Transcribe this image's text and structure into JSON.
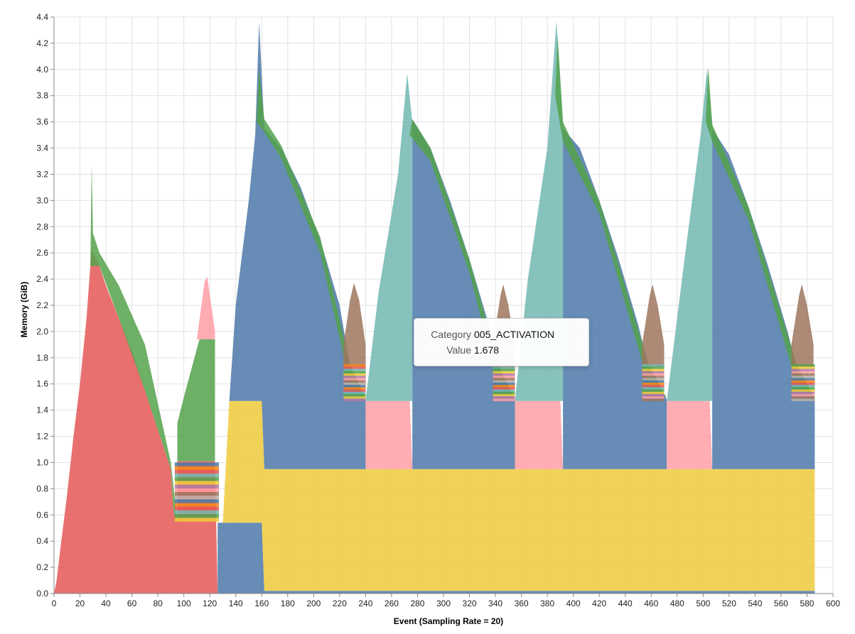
{
  "chart_data": {
    "type": "area",
    "stacked": true,
    "xlabel": "Event (Sampling Rate = 20)",
    "ylabel": "Memory (GiB)",
    "xlim": [
      0,
      600
    ],
    "ylim": [
      0,
      4.4
    ],
    "x_ticks": [
      0,
      20,
      40,
      60,
      80,
      100,
      120,
      140,
      160,
      180,
      200,
      220,
      240,
      260,
      280,
      300,
      320,
      340,
      360,
      380,
      400,
      420,
      440,
      460,
      480,
      500,
      520,
      540,
      560,
      580,
      600
    ],
    "y_ticks": [
      "0.0",
      "0.2",
      "0.4",
      "0.6",
      "0.8",
      "1.0",
      "1.2",
      "1.4",
      "1.6",
      "1.8",
      "2.0",
      "2.2",
      "2.4",
      "2.6",
      "2.8",
      "3.0",
      "3.2",
      "3.4",
      "3.6",
      "3.8",
      "4.0",
      "4.2",
      "4.4"
    ],
    "grid": true,
    "colors": {
      "red": "#e45756",
      "blue": "#4c78a8",
      "yellow": "#eeca3b",
      "teal": "#72b7b2",
      "pink": "#ff9da6",
      "green": "#54a24b",
      "brown": "#9d755d",
      "orange": "#f58518",
      "purple": "#b279a2",
      "gray": "#bab0ac"
    },
    "regions": [
      {
        "color": "red",
        "points": [
          [
            0,
            0
          ],
          [
            2,
            0.1
          ],
          [
            5,
            0.35
          ],
          [
            10,
            0.75
          ],
          [
            15,
            1.2
          ],
          [
            20,
            1.6
          ],
          [
            25,
            2.1
          ],
          [
            28,
            2.5
          ],
          [
            29,
            2.62
          ],
          [
            35,
            2.5
          ],
          [
            40,
            2.35
          ],
          [
            50,
            2.1
          ],
          [
            60,
            1.85
          ],
          [
            70,
            1.55
          ],
          [
            80,
            1.25
          ],
          [
            90,
            0.95
          ],
          [
            92,
            0.62
          ],
          [
            95,
            0.55
          ],
          [
            95,
            1.01
          ],
          [
            124,
            1.01
          ],
          [
            126,
            0
          ]
        ]
      },
      {
        "color": "green",
        "points": [
          [
            95,
            1.01
          ],
          [
            95,
            1.3
          ],
          [
            100,
            1.5
          ],
          [
            112,
            1.94
          ],
          [
            124,
            1.94
          ],
          [
            124,
            1.01
          ]
        ]
      },
      {
        "color": "pink",
        "points": [
          [
            110,
            1.94
          ],
          [
            116,
            2.38
          ],
          [
            118,
            2.42
          ],
          [
            124,
            2.0
          ],
          [
            124,
            1.94
          ]
        ]
      },
      {
        "color": "blue",
        "points": [
          [
            126,
            0
          ],
          [
            126,
            0.54
          ],
          [
            160,
            0.54
          ],
          [
            162,
            0.02
          ],
          [
            586,
            0.02
          ],
          [
            586,
            0
          ]
        ]
      },
      {
        "color": "yellow",
        "points": [
          [
            130,
            0.54
          ],
          [
            135,
            1.47
          ],
          [
            160,
            1.47
          ],
          [
            162,
            0.95
          ],
          [
            586,
            0.95
          ],
          [
            586,
            0.02
          ],
          [
            162,
            0.02
          ],
          [
            160,
            0.54
          ]
        ]
      },
      {
        "color": "blue",
        "points": [
          [
            135,
            1.47
          ],
          [
            140,
            2.2
          ],
          [
            150,
            3.0
          ],
          [
            155,
            3.5
          ],
          [
            158,
            4.36
          ],
          [
            162,
            3.55
          ],
          [
            175,
            3.4
          ],
          [
            190,
            3.1
          ],
          [
            205,
            2.7
          ],
          [
            220,
            2.2
          ],
          [
            228,
            1.73
          ],
          [
            240,
            1.48
          ],
          [
            240,
            0.95
          ],
          [
            162,
            0.95
          ],
          [
            160,
            1.47
          ]
        ]
      },
      {
        "color": "pink",
        "points": [
          [
            240,
            0.95
          ],
          [
            240,
            1.47
          ],
          [
            274,
            1.47
          ],
          [
            276,
            0.95
          ]
        ]
      },
      {
        "color": "teal",
        "points": [
          [
            240,
            1.47
          ],
          [
            250,
            2.3
          ],
          [
            265,
            3.2
          ],
          [
            272,
            3.97
          ],
          [
            276,
            3.6
          ],
          [
            276,
            1.47
          ]
        ]
      },
      {
        "color": "blue",
        "points": [
          [
            276,
            0.95
          ],
          [
            276,
            3.62
          ],
          [
            290,
            3.4
          ],
          [
            305,
            3.0
          ],
          [
            320,
            2.55
          ],
          [
            335,
            2.05
          ],
          [
            342,
            1.73
          ],
          [
            355,
            1.48
          ],
          [
            355,
            0.95
          ]
        ]
      },
      {
        "color": "pink",
        "points": [
          [
            355,
            0.95
          ],
          [
            355,
            1.47
          ],
          [
            390,
            1.47
          ],
          [
            392,
            0.95
          ]
        ]
      },
      {
        "color": "teal",
        "points": [
          [
            355,
            1.47
          ],
          [
            365,
            2.4
          ],
          [
            380,
            3.4
          ],
          [
            387,
            4.37
          ],
          [
            392,
            3.6
          ],
          [
            392,
            1.47
          ]
        ]
      },
      {
        "color": "blue",
        "points": [
          [
            392,
            0.95
          ],
          [
            392,
            3.55
          ],
          [
            405,
            3.4
          ],
          [
            420,
            3.0
          ],
          [
            435,
            2.55
          ],
          [
            450,
            2.05
          ],
          [
            458,
            1.73
          ],
          [
            472,
            1.48
          ],
          [
            472,
            0.95
          ]
        ]
      },
      {
        "color": "pink",
        "points": [
          [
            472,
            0.95
          ],
          [
            472,
            1.47
          ],
          [
            505,
            1.47
          ],
          [
            507,
            0.95
          ]
        ]
      },
      {
        "color": "teal",
        "points": [
          [
            472,
            1.47
          ],
          [
            485,
            2.5
          ],
          [
            498,
            3.5
          ],
          [
            503,
            4.0
          ],
          [
            507,
            3.6
          ],
          [
            507,
            1.47
          ]
        ]
      },
      {
        "color": "blue",
        "points": [
          [
            507,
            0.95
          ],
          [
            507,
            3.55
          ],
          [
            520,
            3.35
          ],
          [
            535,
            2.95
          ],
          [
            550,
            2.5
          ],
          [
            565,
            2.0
          ],
          [
            572,
            1.73
          ],
          [
            586,
            1.48
          ],
          [
            586,
            0.95
          ]
        ]
      },
      {
        "color": "green",
        "points": [
          [
            28,
            2.5
          ],
          [
            29,
            3.28
          ],
          [
            30,
            2.75
          ],
          [
            35,
            2.6
          ],
          [
            50,
            2.35
          ],
          [
            70,
            1.9
          ],
          [
            90,
            1.0
          ],
          [
            95,
            0.55
          ],
          [
            92,
            0.62
          ],
          [
            90,
            0.95
          ],
          [
            70,
            1.55
          ],
          [
            50,
            2.1
          ],
          [
            35,
            2.5
          ]
        ]
      },
      {
        "color": "green",
        "points": [
          [
            156,
            3.6
          ],
          [
            158,
            4.0
          ],
          [
            162,
            3.62
          ],
          [
            175,
            3.42
          ],
          [
            205,
            2.72
          ],
          [
            228,
            1.75
          ],
          [
            240,
            1.49
          ],
          [
            228,
            1.6
          ],
          [
            205,
            2.6
          ],
          [
            175,
            3.32
          ],
          [
            162,
            3.52
          ]
        ]
      },
      {
        "color": "green",
        "points": [
          [
            274,
            3.5
          ],
          [
            276,
            3.62
          ],
          [
            290,
            3.4
          ],
          [
            320,
            2.55
          ],
          [
            342,
            1.75
          ],
          [
            355,
            1.49
          ],
          [
            342,
            1.6
          ],
          [
            320,
            2.45
          ],
          [
            290,
            3.3
          ]
        ]
      },
      {
        "color": "green",
        "points": [
          [
            386,
            3.8
          ],
          [
            388,
            4.25
          ],
          [
            392,
            3.6
          ],
          [
            420,
            3.0
          ],
          [
            458,
            1.75
          ],
          [
            472,
            1.49
          ],
          [
            458,
            1.6
          ],
          [
            420,
            2.9
          ],
          [
            392,
            3.45
          ]
        ]
      },
      {
        "color": "green",
        "points": [
          [
            502,
            3.6
          ],
          [
            504,
            4.02
          ],
          [
            507,
            3.58
          ],
          [
            535,
            2.95
          ],
          [
            572,
            1.75
          ],
          [
            586,
            1.49
          ],
          [
            572,
            1.6
          ],
          [
            535,
            2.85
          ],
          [
            507,
            3.45
          ]
        ]
      },
      {
        "color": "brown",
        "points": [
          [
            223,
            1.9
          ],
          [
            228,
            2.24
          ],
          [
            231,
            2.37
          ],
          [
            235,
            2.24
          ],
          [
            240,
            1.9
          ],
          [
            240,
            1.73
          ],
          [
            223,
            1.73
          ]
        ]
      },
      {
        "color": "brown",
        "points": [
          [
            338,
            1.9
          ],
          [
            344,
            2.28
          ],
          [
            346,
            2.36
          ],
          [
            350,
            2.2
          ],
          [
            355,
            1.9
          ],
          [
            355,
            1.73
          ],
          [
            338,
            1.73
          ]
        ]
      },
      {
        "color": "brown",
        "points": [
          [
            453,
            1.9
          ],
          [
            459,
            2.28
          ],
          [
            461,
            2.36
          ],
          [
            465,
            2.2
          ],
          [
            470,
            1.9
          ],
          [
            470,
            1.73
          ],
          [
            453,
            1.73
          ]
        ]
      },
      {
        "color": "brown",
        "points": [
          [
            568,
            1.9
          ],
          [
            574,
            2.28
          ],
          [
            576,
            2.36
          ],
          [
            580,
            2.2
          ],
          [
            585,
            1.9
          ],
          [
            585,
            1.73
          ],
          [
            568,
            1.73
          ]
        ]
      }
    ],
    "bands": [
      {
        "x": [
          93,
          127
        ],
        "y": [
          0.55,
          1.0
        ]
      },
      {
        "x": [
          223,
          240
        ],
        "y": [
          1.47,
          1.75
        ]
      },
      {
        "x": [
          338,
          355
        ],
        "y": [
          1.47,
          1.75
        ]
      },
      {
        "x": [
          453,
          470
        ],
        "y": [
          1.47,
          1.75
        ]
      },
      {
        "x": [
          568,
          586
        ],
        "y": [
          1.47,
          1.75
        ]
      }
    ],
    "tooltip": {
      "category_label": "Category",
      "category_value": "005_ACTIVATION",
      "value_label": "Value",
      "value_value": "1.678"
    }
  }
}
